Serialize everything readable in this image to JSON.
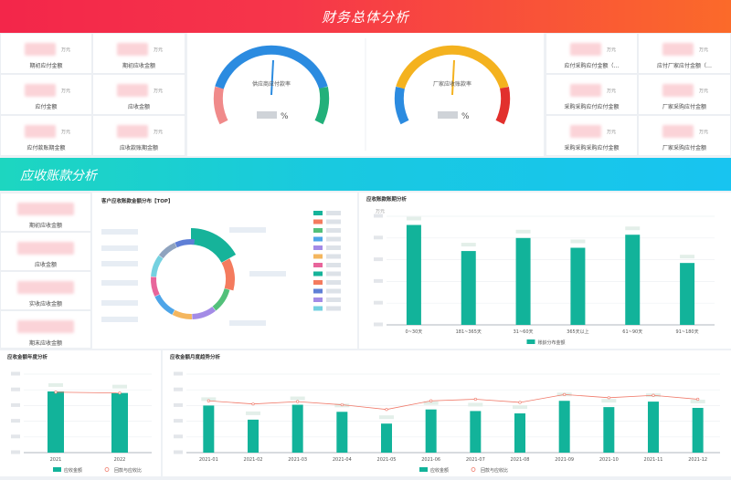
{
  "header": {
    "title": "财务总体分析"
  },
  "section2": {
    "title": "应收账款分析"
  },
  "top_left_cards": [
    {
      "unit": "万元",
      "label": "期初应付金额"
    },
    {
      "unit": "万元",
      "label": "期初应收金额"
    },
    {
      "unit": "万元",
      "label": "应付金额"
    },
    {
      "unit": "万元",
      "label": "应收金额"
    },
    {
      "unit": "万元",
      "label": "应付款账期金额"
    },
    {
      "unit": "万元",
      "label": "应收款账期金额"
    }
  ],
  "top_right_cards": [
    {
      "unit": "万元",
      "label": "应付采购应付金额（…"
    },
    {
      "unit": "万元",
      "label": "应付厂家应付金额（…"
    },
    {
      "unit": "万元",
      "label": "采购采购应付应付金额"
    },
    {
      "unit": "万元",
      "label": "厂家采购应付金额"
    },
    {
      "unit": "万元",
      "label": "采购采购采购应付金额"
    },
    {
      "unit": "万元",
      "label": "厂家采购应付金额"
    }
  ],
  "gauges": [
    {
      "label": "供应商应付款率",
      "unit": "%",
      "value_fraction": 0.5
    },
    {
      "label": "厂家应收账款率",
      "unit": "%",
      "value_fraction": 0.5
    }
  ],
  "ar_cards": [
    {
      "label": "期初应收金额"
    },
    {
      "label": "应收金额"
    },
    {
      "label": "实收应收金额"
    },
    {
      "label": "期末应收金额"
    }
  ],
  "donut": {
    "title": "客户应收账款金额分布【TOP】",
    "colors": [
      "#16b39a",
      "#f47b5e",
      "#52c07a",
      "#a38be6",
      "#f4b65e",
      "#4ea5e8",
      "#e8659b",
      "#74d1e0",
      "#8fa3bf",
      "#5f7fd6"
    ],
    "legend_colors": [
      "#16b39a",
      "#f47b5e",
      "#52c07a",
      "#4ea5e8",
      "#a38be6",
      "#f4b65e",
      "#e8659b",
      "#16b39a",
      "#f47b5e",
      "#5f7fd6",
      "#a38be6",
      "#74d1e0"
    ]
  },
  "chart_data": [
    {
      "type": "bar",
      "title": "应收账款账期分析",
      "categories": [
        "0~30天",
        "181~365天",
        "31~60天",
        "365天以上",
        "61~90天",
        "91~180天"
      ],
      "series": [
        {
          "name": "账龄分布金额",
          "values": [
            92,
            68,
            80,
            71,
            83,
            57
          ]
        }
      ],
      "ylim": [
        0,
        100
      ],
      "ylabel": "万元",
      "color": "#12b39a",
      "legend": "bottom"
    },
    {
      "type": "bar",
      "title": "应收金额年度分析",
      "categories": [
        "2021",
        "2022"
      ],
      "series": [
        {
          "name": "应收金额",
          "values": [
            78,
            76
          ]
        },
        {
          "name": "回款与应收比",
          "values": [
            77,
            76
          ]
        }
      ],
      "ylim": [
        0,
        100
      ],
      "colors": [
        "#12b39a",
        "#f07a6a"
      ],
      "legend": "bottom"
    },
    {
      "type": "bar",
      "title": "应收金额月度趋势分析",
      "categories": [
        "2021-01",
        "2021-02",
        "2021-03",
        "2021-04",
        "2021-05",
        "2021-06",
        "2021-07",
        "2021-08",
        "2021-09",
        "2021-10",
        "2021-11",
        "2021-12"
      ],
      "series": [
        {
          "name": "应收金额",
          "values": [
            60,
            42,
            61,
            52,
            37,
            55,
            53,
            50,
            66,
            58,
            65,
            57
          ]
        },
        {
          "name": "回款与应收比",
          "values": [
            66,
            62,
            65,
            61,
            55,
            66,
            68,
            64,
            74,
            70,
            73,
            68
          ]
        }
      ],
      "ylim": [
        0,
        100
      ],
      "colors": [
        "#12b39a",
        "#f07a6a"
      ],
      "legend": "bottom"
    }
  ]
}
